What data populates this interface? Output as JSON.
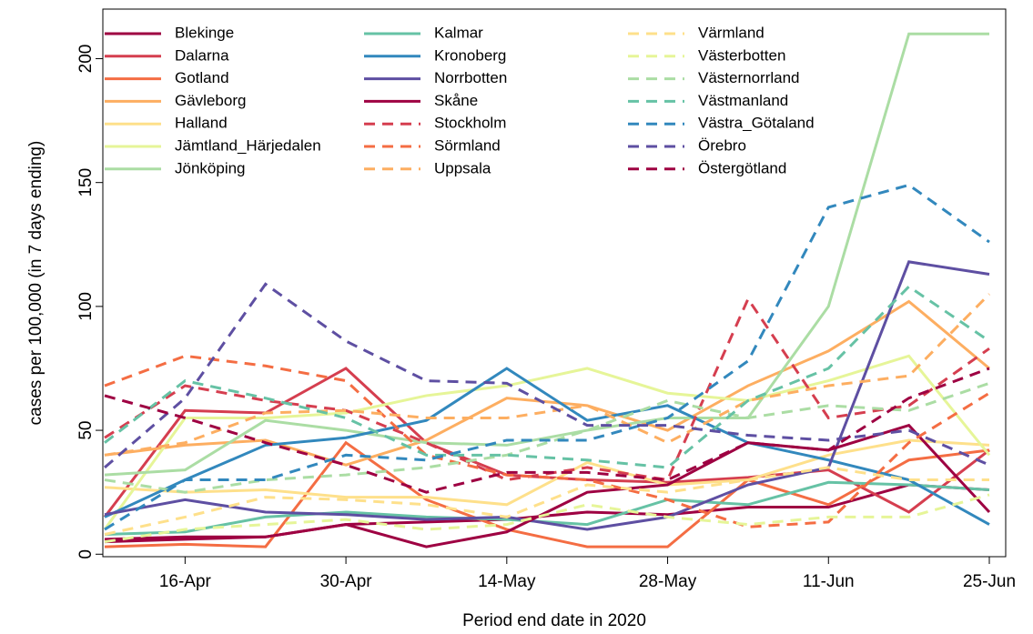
{
  "chart_data": {
    "type": "line",
    "x_label": "Period end date in 2020",
    "y_label": "cases per 100,000 (in 7 days ending)",
    "categories": [
      null,
      "16-Apr",
      null,
      "30-Apr",
      null,
      "14-May",
      null,
      "28-May",
      null,
      "11-Jun",
      null,
      "25-Jun"
    ],
    "ylim": [
      -1,
      220
    ],
    "yticks": [
      0,
      50,
      100,
      150,
      200
    ],
    "legend": "top-left",
    "series": [
      {
        "name": "Blekinge",
        "color": "#9e0142",
        "linestyle": "solid",
        "values": [
          5,
          6,
          7,
          12,
          13,
          14,
          17,
          16,
          19,
          19,
          28,
          26
        ]
      },
      {
        "name": "Dalarna",
        "color": "#d53e4f",
        "linestyle": "solid",
        "values": [
          15,
          58,
          57,
          75,
          45,
          32,
          30,
          29,
          31,
          34,
          17,
          42
        ]
      },
      {
        "name": "Gotland",
        "color": "#f46d43",
        "linestyle": "solid",
        "values": [
          3,
          4,
          3,
          45,
          22,
          10,
          3,
          3,
          30,
          20,
          38,
          42
        ]
      },
      {
        "name": "Gävleborg",
        "color": "#fdae61",
        "linestyle": "solid",
        "values": [
          40,
          44,
          46,
          36,
          46,
          63,
          60,
          50,
          68,
          82,
          102,
          75
        ]
      },
      {
        "name": "Halland",
        "color": "#fee08b",
        "linestyle": "solid",
        "values": [
          27,
          25,
          26,
          23,
          23,
          20,
          37,
          28,
          30,
          40,
          46,
          44
        ]
      },
      {
        "name": "Jämtland_Härjedalen",
        "color": "#e6f598",
        "linestyle": "solid",
        "values": [
          10,
          55,
          55,
          57,
          64,
          68,
          75,
          65,
          62,
          70,
          80,
          40
        ]
      },
      {
        "name": "Jönköping",
        "color": "#abdda4",
        "linestyle": "solid",
        "values": [
          32,
          34,
          54,
          50,
          45,
          44,
          50,
          55,
          55,
          100,
          210,
          210
        ]
      },
      {
        "name": "Kalmar",
        "color": "#66c2a5",
        "linestyle": "solid",
        "values": [
          8,
          9,
          15,
          17,
          15,
          14,
          12,
          22,
          20,
          29,
          28,
          26
        ]
      },
      {
        "name": "Kronoberg",
        "color": "#3288bd",
        "linestyle": "solid",
        "values": [
          15,
          30,
          44,
          47,
          54,
          75,
          54,
          60,
          45,
          38,
          30,
          12
        ]
      },
      {
        "name": "Norrbotten",
        "color": "#5e4fa2",
        "linestyle": "solid",
        "values": [
          16,
          22,
          17,
          16,
          14,
          15,
          10,
          15,
          28,
          35,
          118,
          113
        ]
      },
      {
        "name": "Skåne",
        "color": "#9e0142",
        "linestyle": "solid",
        "values": [
          6,
          7,
          7,
          12,
          3,
          9,
          25,
          28,
          45,
          42,
          52,
          17
        ]
      },
      {
        "name": "Stockholm",
        "color": "#d53e4f",
        "linestyle": "dashed",
        "values": [
          47,
          68,
          62,
          58,
          45,
          30,
          35,
          30,
          103,
          55,
          60,
          83
        ]
      },
      {
        "name": "Sörmland",
        "color": "#f46d43",
        "linestyle": "dashed",
        "values": [
          68,
          80,
          76,
          70,
          40,
          32,
          30,
          22,
          11,
          13,
          45,
          65
        ]
      },
      {
        "name": "Uppsala",
        "color": "#fdae61",
        "linestyle": "dashed",
        "values": [
          40,
          45,
          57,
          58,
          55,
          55,
          60,
          45,
          62,
          68,
          72,
          105
        ]
      },
      {
        "name": "Värmland",
        "color": "#fee08b",
        "linestyle": "dashed",
        "values": [
          8,
          15,
          23,
          22,
          20,
          15,
          28,
          25,
          30,
          35,
          30,
          30
        ]
      },
      {
        "name": "Västerbotten",
        "color": "#e6f598",
        "linestyle": "dashed",
        "values": [
          5,
          10,
          12,
          14,
          10,
          12,
          20,
          15,
          12,
          15,
          15,
          24
        ]
      },
      {
        "name": "Västernorrland",
        "color": "#abdda4",
        "linestyle": "dashed",
        "values": [
          30,
          25,
          30,
          32,
          35,
          40,
          50,
          62,
          55,
          60,
          58,
          69
        ]
      },
      {
        "name": "Västmanland",
        "color": "#66c2a5",
        "linestyle": "dashed",
        "values": [
          45,
          70,
          63,
          55,
          40,
          40,
          38,
          35,
          62,
          75,
          108,
          86
        ]
      },
      {
        "name": "Västra_Götaland",
        "color": "#3288bd",
        "linestyle": "dashed",
        "values": [
          10,
          30,
          30,
          40,
          38,
          46,
          46,
          55,
          78,
          140,
          149,
          126
        ]
      },
      {
        "name": "Örebro",
        "color": "#5e4fa2",
        "linestyle": "dashed",
        "values": [
          35,
          63,
          109,
          86,
          70,
          69,
          52,
          52,
          48,
          46,
          50,
          36
        ]
      },
      {
        "name": "Östergötland",
        "color": "#9e0142",
        "linestyle": "dashed",
        "values": [
          64,
          55,
          45,
          36,
          25,
          33,
          33,
          30,
          45,
          42,
          63,
          75
        ]
      }
    ]
  }
}
